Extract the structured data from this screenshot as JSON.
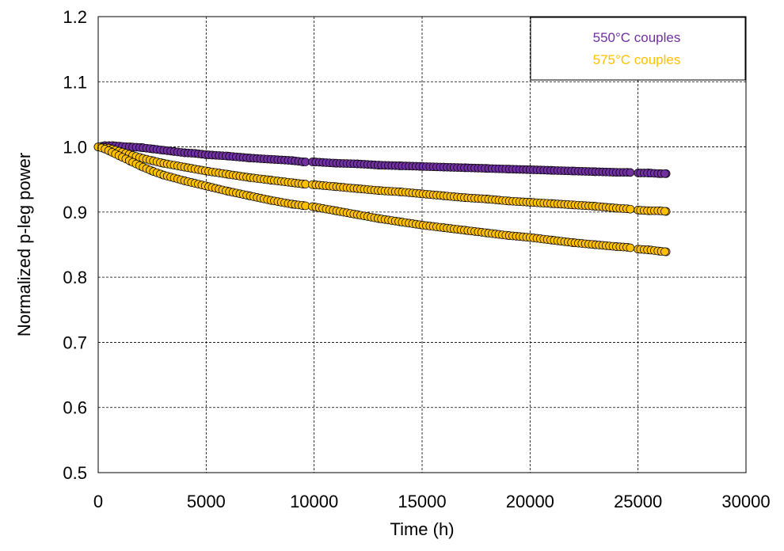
{
  "chart_data": {
    "type": "scatter",
    "title": "",
    "xlabel": "Time (h)",
    "ylabel": "Normalized p-leg power",
    "xlim": [
      0,
      30000
    ],
    "ylim": [
      0.5,
      1.2
    ],
    "xticks": [
      0,
      5000,
      10000,
      15000,
      20000,
      25000,
      30000
    ],
    "xtick_labels": [
      "0",
      "5000",
      "10000",
      "15000",
      "20000",
      "25000",
      "30000"
    ],
    "yticks": [
      0.5,
      0.6,
      0.7,
      0.8,
      0.9,
      1.0,
      1.1,
      1.2
    ],
    "ytick_labels": [
      "0.5",
      "0.6",
      "0.7",
      "0.8",
      "0.9",
      "1.0",
      "1.1",
      "1.2"
    ],
    "grid": true,
    "grid_style": "dashed",
    "legend_position": "top-right",
    "legend": [
      {
        "label": "550°C couples",
        "color": "#7030A0"
      },
      {
        "label": "575°C couples",
        "color": "#FFC000"
      }
    ],
    "series": [
      {
        "name": "550°C couples",
        "color": "#7030A0",
        "x": [
          0,
          300,
          500,
          700,
          1000,
          1500,
          2000,
          2500,
          3000,
          3500,
          4000,
          4500,
          5000,
          6000,
          7000,
          8000,
          9000,
          9500,
          10000,
          11000,
          12000,
          13000,
          14000,
          15000,
          16000,
          17000,
          18000,
          19000,
          20000,
          21000,
          22000,
          23000,
          24000,
          24500,
          25000,
          25500,
          26000,
          26300
        ],
        "y": [
          1.0,
          1.002,
          1.002,
          1.002,
          1.001,
          1.0,
          0.999,
          0.997,
          0.995,
          0.993,
          0.991,
          0.99,
          0.988,
          0.986,
          0.983,
          0.981,
          0.979,
          0.977,
          0.977,
          0.975,
          0.974,
          0.972,
          0.971,
          0.97,
          0.969,
          0.968,
          0.967,
          0.966,
          0.965,
          0.964,
          0.963,
          0.962,
          0.961,
          0.961,
          0.96,
          0.96,
          0.959,
          0.959
        ]
      },
      {
        "name": "575°C couples (upper)",
        "color": "#FFC000",
        "x": [
          0,
          300,
          500,
          1000,
          1500,
          2000,
          2500,
          3000,
          4000,
          5000,
          6000,
          7000,
          8000,
          9000,
          9500,
          10000,
          11000,
          12000,
          13000,
          14000,
          15000,
          16000,
          17000,
          18000,
          19000,
          20000,
          21000,
          22000,
          23000,
          24000,
          24500,
          25000,
          25500,
          26000,
          26300
        ],
        "y": [
          1.0,
          0.999,
          0.998,
          0.993,
          0.988,
          0.983,
          0.979,
          0.975,
          0.969,
          0.963,
          0.958,
          0.953,
          0.949,
          0.945,
          0.943,
          0.942,
          0.939,
          0.936,
          0.933,
          0.931,
          0.928,
          0.925,
          0.922,
          0.92,
          0.917,
          0.915,
          0.913,
          0.911,
          0.909,
          0.906,
          0.905,
          0.903,
          0.902,
          0.902,
          0.901
        ]
      },
      {
        "name": "575°C couples (lower)",
        "color": "#FFC000",
        "x": [
          0,
          300,
          500,
          1000,
          1500,
          2000,
          2500,
          3000,
          4000,
          5000,
          6000,
          7000,
          8000,
          9000,
          9500,
          10000,
          11000,
          12000,
          13000,
          14000,
          15000,
          16000,
          17000,
          18000,
          19000,
          20000,
          21000,
          22000,
          23000,
          24000,
          24500,
          25000,
          25500,
          26000,
          26300
        ],
        "y": [
          1.0,
          0.997,
          0.994,
          0.986,
          0.978,
          0.97,
          0.963,
          0.957,
          0.948,
          0.94,
          0.932,
          0.925,
          0.918,
          0.912,
          0.91,
          0.908,
          0.902,
          0.896,
          0.89,
          0.885,
          0.88,
          0.876,
          0.872,
          0.868,
          0.864,
          0.861,
          0.857,
          0.853,
          0.85,
          0.847,
          0.846,
          0.843,
          0.842,
          0.84,
          0.839
        ]
      }
    ]
  }
}
